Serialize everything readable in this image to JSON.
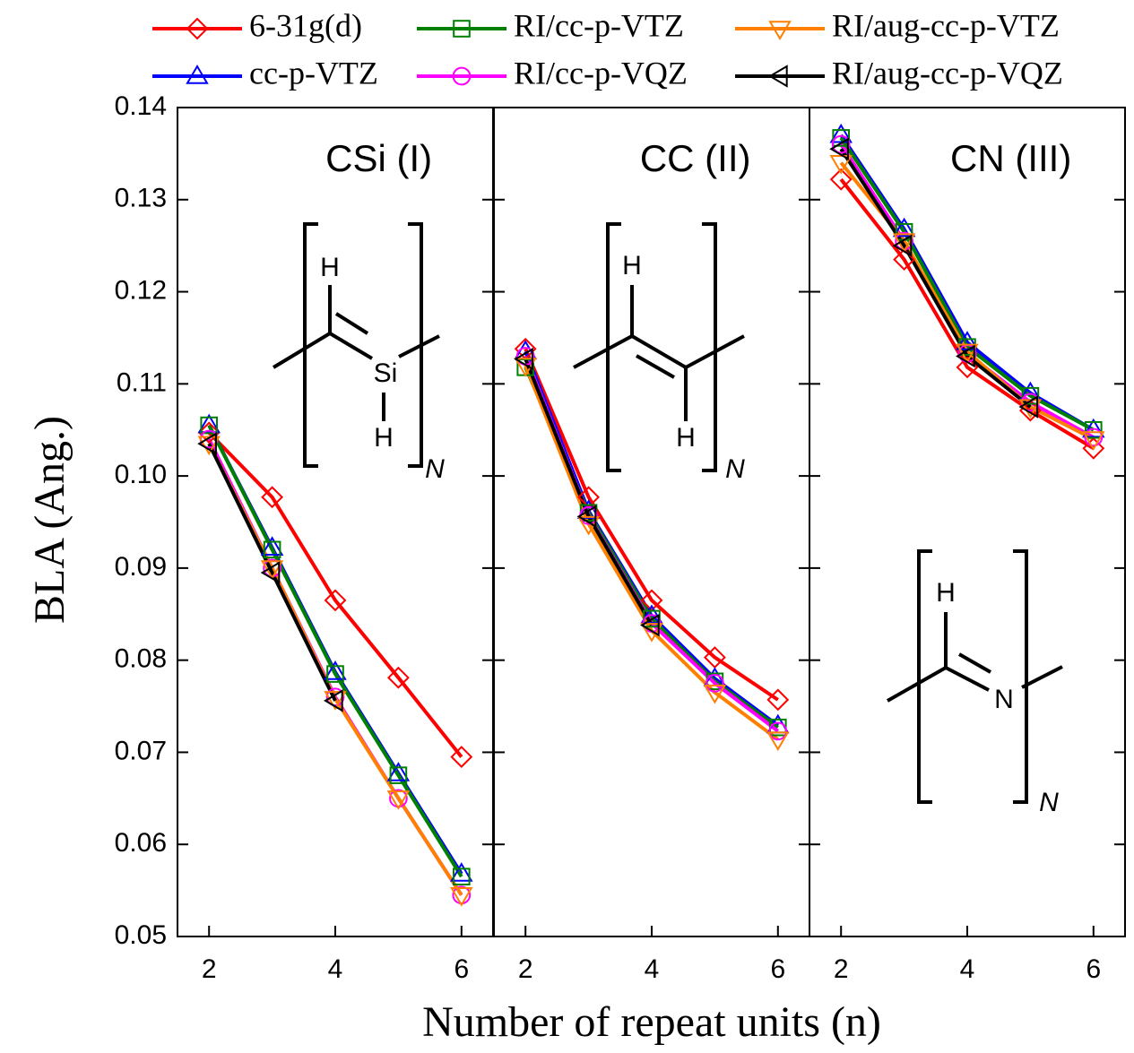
{
  "chart_data": [
    {
      "type": "line",
      "title": "CSi (I)",
      "ylabel": "BLA (Ang.)",
      "x": [
        2,
        3,
        4,
        5,
        6
      ],
      "xlim": [
        1.5,
        6.5
      ],
      "xticks": [
        2,
        4,
        6
      ],
      "ylim": [
        0.05,
        0.14
      ],
      "yticks": [
        0.05,
        0.06,
        0.07,
        0.08,
        0.09,
        {
          "value": 0.1,
          "label": "0.10"
        },
        0.11,
        0.12,
        0.13,
        0.14
      ],
      "structure_labels": [
        "H",
        "Si",
        "H",
        "N"
      ],
      "series": [
        {
          "name": "6-31g(d)",
          "color": "#ff0000",
          "marker": "diamond",
          "values": [
            0.1047,
            0.0977,
            0.0865,
            0.0781,
            0.0695
          ]
        },
        {
          "name": "cc-p-VTZ",
          "color": "#0000ff",
          "marker": "triangle-up",
          "values": [
            0.1055,
            0.0922,
            0.0787,
            0.0677,
            0.0568
          ]
        },
        {
          "name": "RI/cc-p-VTZ",
          "color": "#008000",
          "marker": "square",
          "values": [
            0.1055,
            0.092,
            0.0785,
            0.0675,
            0.0565
          ]
        },
        {
          "name": "RI/cc-p-VQZ",
          "color": "#ff00ff",
          "marker": "circle",
          "values": [
            0.104,
            0.09,
            0.076,
            0.065,
            0.0545
          ]
        },
        {
          "name": "RI/aug-cc-p-VTZ",
          "color": "#ff8000",
          "marker": "triangle-down",
          "values": [
            0.1035,
            0.09,
            0.0758,
            0.065,
            0.0545
          ]
        },
        {
          "name": "RI/aug-cc-p-VQZ",
          "color": "#000000",
          "marker": "triangle-left",
          "values": [
            0.1035,
            0.0895,
            0.0756,
            null,
            null
          ]
        }
      ]
    },
    {
      "type": "line",
      "title": "CC (II)",
      "xlabel": "Number of repeat units (n)",
      "x": [
        2,
        3,
        4,
        5,
        6
      ],
      "xlim": [
        1.5,
        6.5
      ],
      "xticks": [
        2,
        4,
        6
      ],
      "ylim": [
        0.05,
        0.14
      ],
      "yticks": [
        0.05,
        0.06,
        0.07,
        0.08,
        0.09,
        0.1,
        0.11,
        0.12,
        0.13,
        0.14
      ],
      "structure_labels": [
        "H",
        "H",
        "N"
      ],
      "series": [
        {
          "name": "6-31g(d)",
          "color": "#ff0000",
          "marker": "diamond",
          "values": [
            0.1138,
            0.0977,
            0.0865,
            0.0803,
            0.0757
          ]
        },
        {
          "name": "cc-p-VTZ",
          "color": "#0000ff",
          "marker": "triangle-up",
          "values": [
            0.1135,
            0.0962,
            0.0848,
            0.078,
            0.0729
          ]
        },
        {
          "name": "RI/cc-p-VTZ",
          "color": "#008000",
          "marker": "square",
          "values": [
            0.1118,
            0.096,
            0.0845,
            0.0777,
            0.0727
          ]
        },
        {
          "name": "RI/cc-p-VQZ",
          "color": "#ff00ff",
          "marker": "circle",
          "values": [
            0.113,
            0.0957,
            0.084,
            0.0775,
            0.0723
          ]
        },
        {
          "name": "RI/aug-cc-p-VTZ",
          "color": "#ff8000",
          "marker": "triangle-down",
          "values": [
            0.112,
            0.0948,
            0.0832,
            0.0765,
            0.0714
          ]
        },
        {
          "name": "RI/aug-cc-p-VQZ",
          "color": "#000000",
          "marker": "triangle-left",
          "values": [
            0.1127,
            0.0956,
            0.0838,
            null,
            null
          ]
        }
      ]
    },
    {
      "type": "line",
      "title": "CN (III)",
      "x": [
        2,
        3,
        4,
        5,
        6
      ],
      "xlim": [
        1.5,
        6.5
      ],
      "xticks": [
        2,
        4,
        6
      ],
      "ylim": [
        0.05,
        0.14
      ],
      "yticks": [
        0.05,
        0.06,
        0.07,
        0.08,
        0.09,
        0.1,
        0.11,
        0.12,
        0.13,
        0.14
      ],
      "structure_labels": [
        "H",
        "N",
        "N"
      ],
      "series": [
        {
          "name": "6-31g(d)",
          "color": "#ff0000",
          "marker": "diamond",
          "values": [
            0.1322,
            0.1235,
            0.1118,
            0.1071,
            0.103
          ]
        },
        {
          "name": "cc-p-VTZ",
          "color": "#0000ff",
          "marker": "triangle-up",
          "values": [
            0.137,
            0.1268,
            0.1145,
            0.109,
            0.105
          ]
        },
        {
          "name": "RI/cc-p-VTZ",
          "color": "#008000",
          "marker": "square",
          "values": [
            0.1367,
            0.1265,
            0.114,
            0.1087,
            0.105
          ]
        },
        {
          "name": "RI/cc-p-VQZ",
          "color": "#ff00ff",
          "marker": "circle",
          "values": [
            0.136,
            0.1255,
            0.1133,
            0.108,
            0.1042
          ]
        },
        {
          "name": "RI/aug-cc-p-VTZ",
          "color": "#ff8000",
          "marker": "triangle-down",
          "values": [
            0.134,
            0.1255,
            0.1135,
            0.1075,
            0.104
          ]
        },
        {
          "name": "RI/aug-cc-p-VQZ",
          "color": "#000000",
          "marker": "triangle-left",
          "values": [
            0.1355,
            0.125,
            0.113,
            0.1075,
            null
          ]
        }
      ]
    }
  ]
}
